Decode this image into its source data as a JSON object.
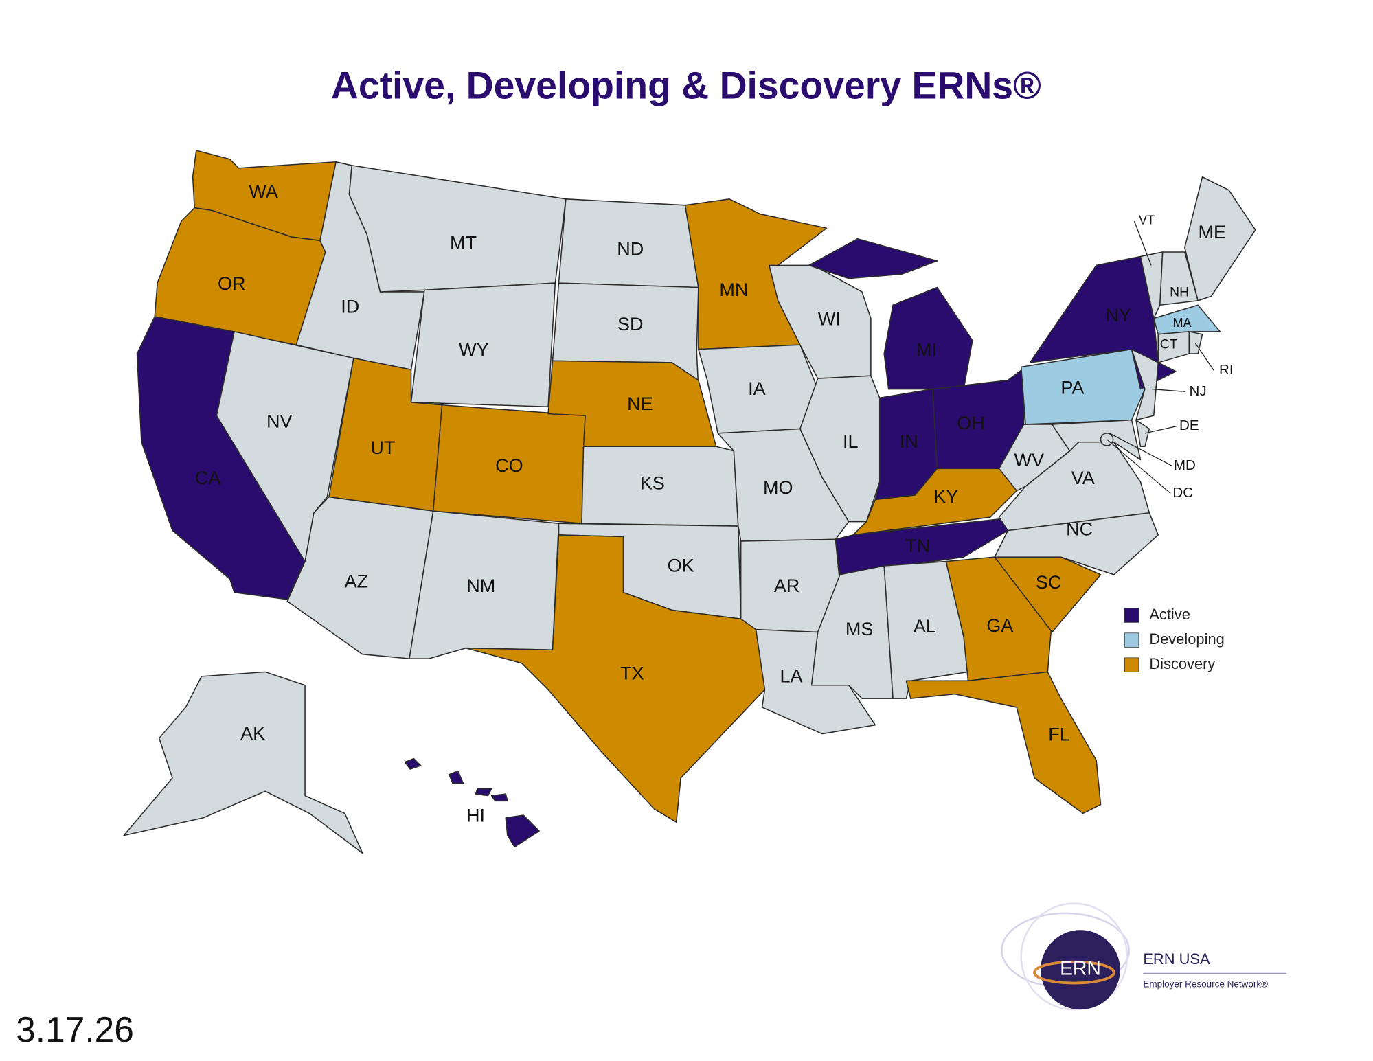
{
  "title": "Active, Developing & Discovery ERNs®",
  "base_color": "#d3dbde",
  "legend": [
    {
      "label": "Active",
      "color": "#2a0c6e"
    },
    {
      "label": "Developing",
      "color": "#9dcbe2"
    },
    {
      "label": "Discovery",
      "color": "#cf8b00"
    }
  ],
  "states": [
    {
      "label": "WA",
      "status": "Discovery"
    },
    {
      "label": "OR",
      "status": "Discovery"
    },
    {
      "label": "CA",
      "status": "Active"
    },
    {
      "label": "NV",
      "status": null
    },
    {
      "label": "ID",
      "status": null
    },
    {
      "label": "MT",
      "status": null
    },
    {
      "label": "WY",
      "status": null
    },
    {
      "label": "UT",
      "status": "Discovery"
    },
    {
      "label": "CO",
      "status": "Discovery"
    },
    {
      "label": "AZ",
      "status": null
    },
    {
      "label": "NM",
      "status": null
    },
    {
      "label": "ND",
      "status": null
    },
    {
      "label": "SD",
      "status": null
    },
    {
      "label": "NE",
      "status": "Discovery"
    },
    {
      "label": "KS",
      "status": null
    },
    {
      "label": "OK",
      "status": null
    },
    {
      "label": "TX",
      "status": "Discovery"
    },
    {
      "label": "MN",
      "status": "Discovery"
    },
    {
      "label": "IA",
      "status": null
    },
    {
      "label": "MO",
      "status": null
    },
    {
      "label": "AR",
      "status": null
    },
    {
      "label": "LA",
      "status": null
    },
    {
      "label": "WI",
      "status": null
    },
    {
      "label": "IL",
      "status": null
    },
    {
      "label": "MI",
      "status": "Active"
    },
    {
      "label": "IN",
      "status": "Active"
    },
    {
      "label": "OH",
      "status": "Active"
    },
    {
      "label": "KY",
      "status": "Discovery"
    },
    {
      "label": "TN",
      "status": "Active"
    },
    {
      "label": "MS",
      "status": null
    },
    {
      "label": "AL",
      "status": null
    },
    {
      "label": "GA",
      "status": "Discovery"
    },
    {
      "label": "FL",
      "status": "Discovery"
    },
    {
      "label": "SC",
      "status": "Discovery"
    },
    {
      "label": "NC",
      "status": null
    },
    {
      "label": "VA",
      "status": null
    },
    {
      "label": "WV",
      "status": null
    },
    {
      "label": "PA",
      "status": "Developing"
    },
    {
      "label": "NY",
      "status": "Active"
    },
    {
      "label": "NJ",
      "status": null
    },
    {
      "label": "DE",
      "status": null
    },
    {
      "label": "MD",
      "status": null
    },
    {
      "label": "DC",
      "status": null
    },
    {
      "label": "VT",
      "status": null
    },
    {
      "label": "NH",
      "status": null
    },
    {
      "label": "ME",
      "status": null
    },
    {
      "label": "MA",
      "status": "Developing"
    },
    {
      "label": "CT",
      "status": null
    },
    {
      "label": "RI",
      "status": null
    },
    {
      "label": "AK",
      "status": null
    },
    {
      "label": "HI",
      "status": "Active"
    }
  ],
  "date": "3.17.26",
  "logo": {
    "mark": "ERN",
    "name": "ERN USA",
    "tagline": "Employer Resource Network®"
  }
}
